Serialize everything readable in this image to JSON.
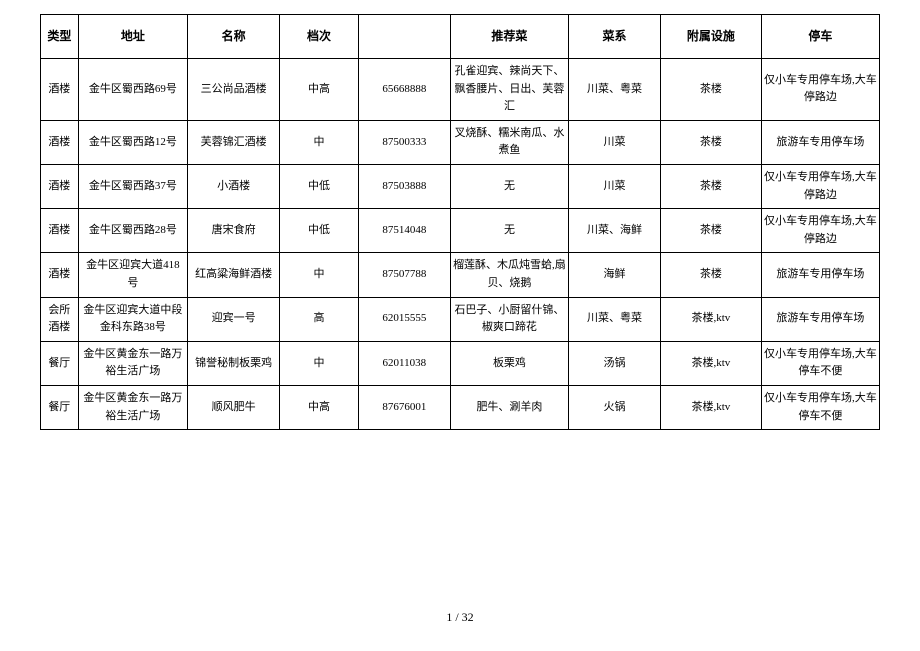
{
  "table": {
    "columns": [
      "类型",
      "地址",
      "名称",
      "档次",
      "",
      "推荐菜",
      "菜系",
      "附属设施",
      "停车"
    ],
    "rows": [
      [
        "酒楼",
        "金牛区蜀西路69号",
        "三公尚品酒楼",
        "中高",
        "65668888",
        "孔雀迎宾、辣尚天下、飘香腰片、日出、芙蓉汇",
        "川菜、粤菜",
        "茶楼",
        "仅小车专用停车场,大车停路边"
      ],
      [
        "酒楼",
        "金牛区蜀西路12号",
        "芙蓉锦汇酒楼",
        "中",
        "87500333",
        "叉烧酥、糯米南瓜、水煮鱼",
        "川菜",
        "茶楼",
        "旅游车专用停车场"
      ],
      [
        "酒楼",
        "金牛区蜀西路37号",
        "小酒楼",
        "中低",
        "87503888",
        "无",
        "川菜",
        "茶楼",
        "仅小车专用停车场,大车停路边"
      ],
      [
        "酒楼",
        "金牛区蜀西路28号",
        "唐宋食府",
        "中低",
        "87514048",
        "无",
        "川菜、海鲜",
        "茶楼",
        "仅小车专用停车场,大车停路边"
      ],
      [
        "酒楼",
        "金牛区迎宾大道418号",
        "红高粱海鲜酒楼",
        "中",
        "87507788",
        "榴莲酥、木瓜炖雪蛤,扇贝、烧鹅",
        "海鲜",
        "茶楼",
        "旅游车专用停车场"
      ],
      [
        "会所酒楼",
        "金牛区迎宾大道中段金科东路38号",
        "迎宾一号",
        "高",
        "62015555",
        "石巴子、小厨留什锦、椒爽口蹄花",
        "川菜、粤菜",
        "茶楼,ktv",
        "旅游车专用停车场"
      ],
      [
        "餐厅",
        "金牛区黄金东一路万裕生活广场",
        "锦誉秘制板栗鸡",
        "中",
        "62011038",
        "板栗鸡",
        "汤锅",
        "茶楼,ktv",
        "仅小车专用停车场,大车停车不便"
      ],
      [
        "餐厅",
        "金牛区黄金东一路万裕生活广场",
        "顺风肥牛",
        "中高",
        "87676001",
        "肥牛、涮羊肉",
        "火锅",
        "茶楼,ktv",
        "仅小车专用停车场,大车停车不便"
      ]
    ]
  },
  "footer": {
    "current": "1",
    "sep": " / ",
    "total": "32"
  }
}
